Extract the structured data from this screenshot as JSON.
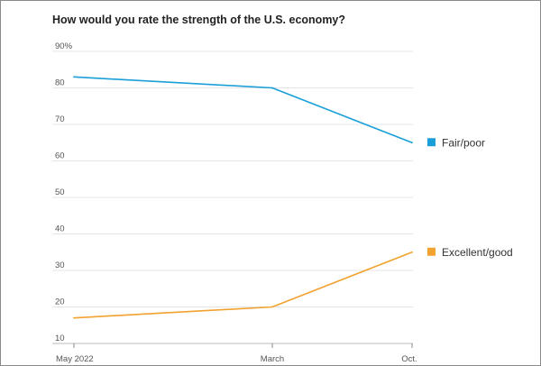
{
  "chart_data": {
    "type": "line",
    "title": "How would you rate the strength of the U.S. economy?",
    "xlabel": "",
    "ylabel": "",
    "x": [
      "May 2022",
      "March",
      "Oct."
    ],
    "ylim": [
      10,
      90
    ],
    "y_ticks": [
      10,
      20,
      30,
      40,
      50,
      60,
      70,
      80,
      90
    ],
    "y_tick_labels": [
      "10",
      "20",
      "30",
      "40",
      "50",
      "60",
      "70",
      "80",
      "90%"
    ],
    "grid": true,
    "legend_placement": "right",
    "series": [
      {
        "name": "Fair/poor",
        "values": [
          83,
          80,
          65
        ],
        "color": "#1a9fd8"
      },
      {
        "name": "Excellent/good",
        "values": [
          17,
          20,
          35
        ],
        "color": "#f2a22e"
      }
    ]
  }
}
